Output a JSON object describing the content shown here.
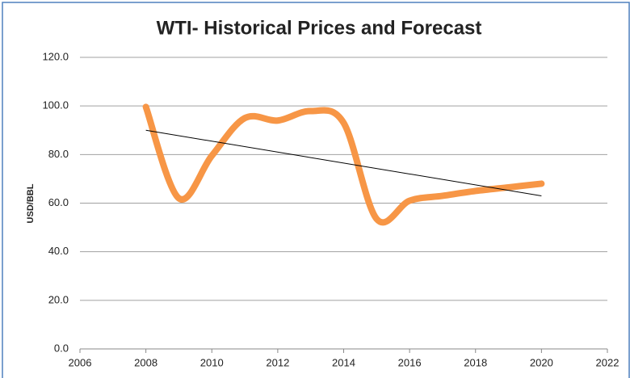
{
  "chart_data": {
    "type": "line",
    "title": "WTI- Historical Prices and Forecast",
    "y_label": "USD/BBL",
    "x": [
      2008,
      2009,
      2010,
      2011,
      2012,
      2013,
      2014,
      2015,
      2016,
      2017,
      2018,
      2019,
      2020
    ],
    "series": [
      {
        "name": "WTI",
        "color": "#f79646",
        "values": [
          99.6,
          62,
          79.5,
          95,
          94,
          97.9,
          93,
          53.5,
          61,
          63,
          65,
          66.5,
          68
        ]
      }
    ],
    "trendline": {
      "x": [
        2008,
        2020
      ],
      "values": [
        90,
        63
      ],
      "color": "#000000"
    },
    "xlim": [
      2006,
      2022
    ],
    "xticks": [
      2006,
      2008,
      2010,
      2012,
      2014,
      2016,
      2018,
      2020,
      2022
    ],
    "ylim": [
      0,
      120
    ],
    "yticks": [
      {
        "value": 0,
        "label": "0.0"
      },
      {
        "value": 20,
        "label": "20.0"
      },
      {
        "value": 40,
        "label": "40.0"
      },
      {
        "value": 60,
        "label": "60.0"
      },
      {
        "value": 80,
        "label": "80.0"
      },
      {
        "value": 100,
        "label": "100.0"
      },
      {
        "value": 120,
        "label": "120.0"
      }
    ],
    "grid": true,
    "legend": false
  }
}
